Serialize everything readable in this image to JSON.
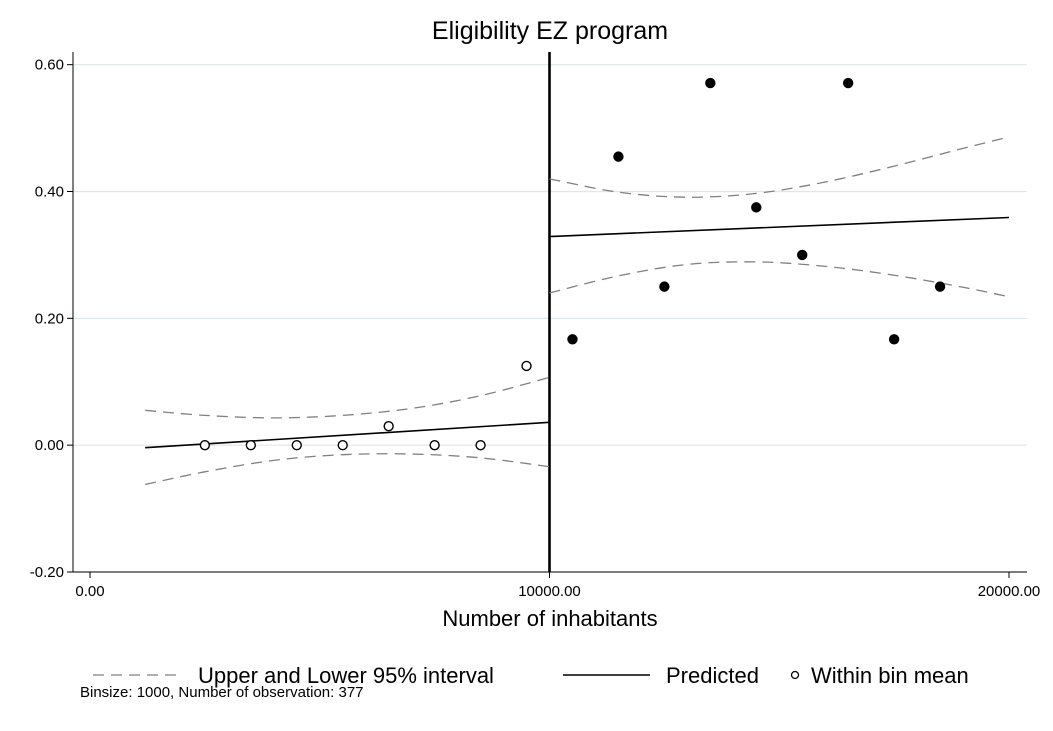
{
  "chart_data": {
    "type": "scatter",
    "title": "Eligibility EZ program",
    "xlabel": "Number of inhabitants",
    "ylabel": "",
    "xlim": [
      0,
      20000
    ],
    "ylim": [
      -0.2,
      0.62
    ],
    "xticks": [
      0,
      10000,
      20000
    ],
    "xtick_labels": [
      "0.00",
      "10000.00",
      "20000.00"
    ],
    "yticks": [
      -0.2,
      0,
      0.2,
      0.4,
      0.6
    ],
    "ytick_labels": [
      "-0.20",
      "0.00",
      "0.20",
      "0.40",
      "0.60"
    ],
    "grid": true,
    "cutoff": 10000,
    "series": [
      {
        "name": "Within bin mean",
        "side": "below cutoff",
        "marker": "hollow-circle",
        "x": [
          2500,
          3500,
          4500,
          5500,
          6500,
          7500,
          8500,
          9500
        ],
        "y": [
          0.0,
          0.0,
          0.0,
          0.0,
          0.03,
          0.0,
          0.0,
          0.125
        ]
      },
      {
        "name": "Within bin mean",
        "side": "above cutoff",
        "marker": "filled-circle",
        "x": [
          10500,
          11500,
          12500,
          13500,
          14500,
          15500,
          16500,
          17500,
          18500
        ],
        "y": [
          0.167,
          0.455,
          0.25,
          0.571,
          0.375,
          0.3,
          0.571,
          0.167,
          0.25
        ]
      },
      {
        "name": "Predicted",
        "side": "below cutoff",
        "x": [
          1200,
          10000
        ],
        "y": [
          -0.004,
          0.036
        ]
      },
      {
        "name": "Predicted",
        "side": "above cutoff",
        "x": [
          10000,
          20000
        ],
        "y": [
          0.329,
          0.359
        ]
      },
      {
        "name": "Upper 95% interval",
        "side": "below cutoff",
        "x": [
          1200,
          2500,
          4000,
          5500,
          7000,
          8500,
          10000
        ],
        "y": [
          0.055,
          0.047,
          0.043,
          0.047,
          0.058,
          0.078,
          0.107
        ]
      },
      {
        "name": "Lower 95% interval",
        "side": "below cutoff",
        "x": [
          1200,
          2500,
          4000,
          5500,
          7000,
          8500,
          10000
        ],
        "y": [
          -0.062,
          -0.042,
          -0.024,
          -0.015,
          -0.014,
          -0.02,
          -0.034
        ]
      },
      {
        "name": "Upper 95% interval",
        "side": "above cutoff",
        "x": [
          10000,
          11500,
          13000,
          14500,
          16000,
          17500,
          19000,
          20000
        ],
        "y": [
          0.42,
          0.399,
          0.391,
          0.397,
          0.415,
          0.44,
          0.468,
          0.486
        ]
      },
      {
        "name": "Lower 95% interval",
        "side": "above cutoff",
        "x": [
          10000,
          11500,
          13000,
          14500,
          16000,
          17500,
          19000,
          20000
        ],
        "y": [
          0.24,
          0.267,
          0.285,
          0.289,
          0.282,
          0.268,
          0.249,
          0.234
        ]
      }
    ],
    "legend": {
      "placement": "bottom",
      "items": [
        "Upper and Lower 95% interval",
        "Predicted",
        "Within bin mean"
      ]
    },
    "note": "Binsize: 1000, Number of observation: 377"
  },
  "colors": {
    "grid": "#dce9ea",
    "interval": "#808080",
    "line": "#000000"
  }
}
